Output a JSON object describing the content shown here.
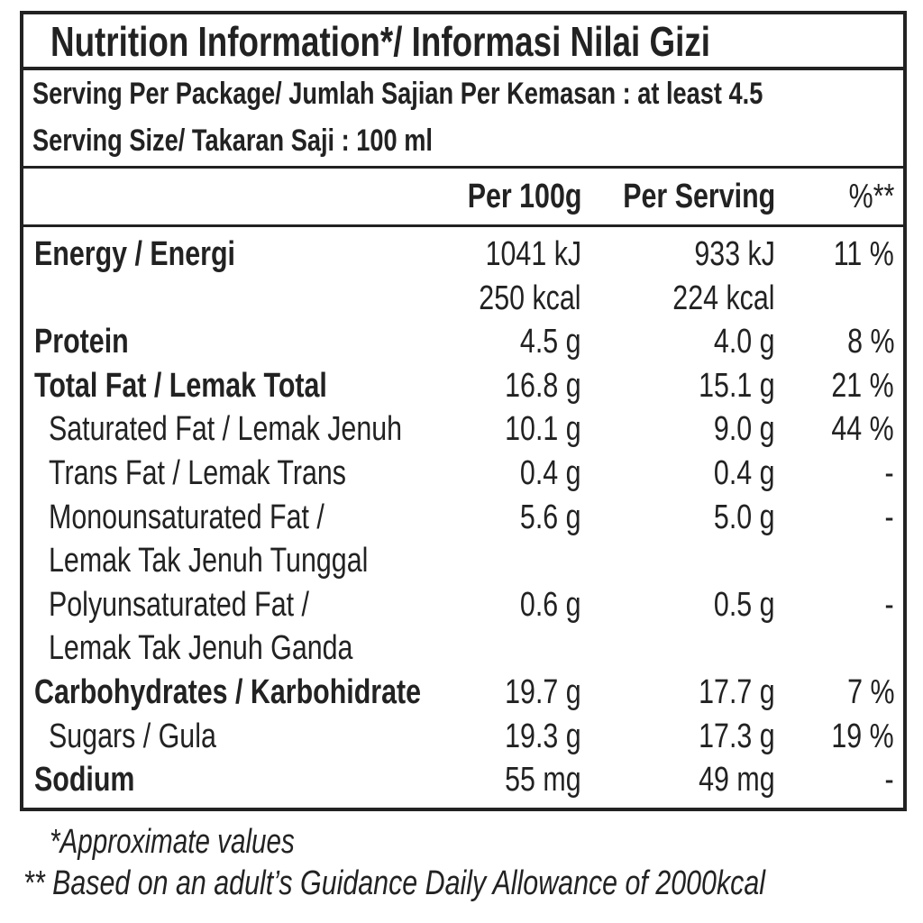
{
  "header": {
    "title": "Nutrition Information*/  Informasi Nilai Gizi",
    "serving_per_package": "Serving Per Package/ Jumlah Sajian Per Kemasan : at least 4.5",
    "serving_size": "Serving Size/ Takaran Saji : 100 ml"
  },
  "table": {
    "columns": [
      "Per 100g",
      "Per Serving",
      "%**"
    ],
    "rows": [
      {
        "label": [
          "Energy / Energi"
        ],
        "per_100g": [
          "1041 kJ",
          "250 kcal"
        ],
        "per_serving": [
          "933 kJ",
          "224 kcal"
        ],
        "percent": "11 %"
      },
      {
        "label": [
          "Protein"
        ],
        "per_100g": [
          "4.5 g"
        ],
        "per_serving": [
          "4.0 g"
        ],
        "percent": "8 %"
      },
      {
        "label": [
          "Total Fat / Lemak Total"
        ],
        "per_100g": [
          "16.8 g"
        ],
        "per_serving": [
          "15.1 g"
        ],
        "percent": "21 %"
      },
      {
        "label": [
          "Saturated Fat / Lemak Jenuh"
        ],
        "per_100g": [
          "10.1 g"
        ],
        "per_serving": [
          "9.0 g"
        ],
        "percent": "44 %"
      },
      {
        "label": [
          "Trans Fat / Lemak Trans"
        ],
        "per_100g": [
          "0.4 g"
        ],
        "per_serving": [
          "0.4 g"
        ],
        "percent": "-"
      },
      {
        "label": [
          "Monounsaturated Fat /",
          "Lemak Tak Jenuh Tunggal"
        ],
        "per_100g": [
          "5.6 g"
        ],
        "per_serving": [
          "5.0 g"
        ],
        "percent": "-"
      },
      {
        "label": [
          "Polyunsaturated Fat /",
          "Lemak Tak Jenuh Ganda"
        ],
        "per_100g": [
          "0.6 g"
        ],
        "per_serving": [
          "0.5 g"
        ],
        "percent": "-"
      },
      {
        "label": [
          "Carbohydrates / Karbohidrate"
        ],
        "per_100g": [
          "19.7 g"
        ],
        "per_serving": [
          "17.7 g"
        ],
        "percent": "7 %"
      },
      {
        "label": [
          "Sugars / Gula"
        ],
        "per_100g": [
          "19.3 g"
        ],
        "per_serving": [
          "17.3 g"
        ],
        "percent": "19 %"
      },
      {
        "label": [
          "Sodium"
        ],
        "per_100g": [
          "55 mg"
        ],
        "per_serving": [
          "49 mg"
        ],
        "percent": "-"
      }
    ]
  },
  "footnotes": [
    "*Approximate values",
    "** Based on an adult’s Guidance Daily Allowance of 2000kcal"
  ]
}
